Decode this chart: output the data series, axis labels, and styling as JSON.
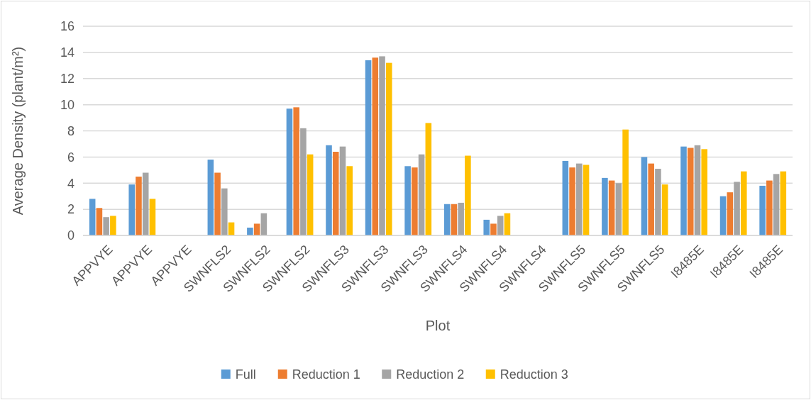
{
  "chart_data": {
    "type": "bar",
    "xlabel": "Plot",
    "ylabel": "Average Density (plant/m²)",
    "categories": [
      "APPVYE",
      "APPVYE",
      "APPVYE",
      "SWNFLS2",
      "SWNFLS2",
      "SWNFLS2",
      "SWNFLS3",
      "SWNFLS3",
      "SWNFLS3",
      "SWNFLS4",
      "SWNFLS4",
      "SWNFLS4",
      "SWNFLS5",
      "SWNFLS5",
      "SWNFLS5",
      "I8485E",
      "I8485E",
      "I8485E"
    ],
    "series": [
      {
        "name": "Full",
        "color": "#5b9bd5",
        "values": [
          2.8,
          3.9,
          0,
          5.8,
          0.6,
          9.7,
          6.9,
          13.4,
          5.3,
          2.4,
          1.2,
          0,
          5.7,
          4.4,
          6.0,
          6.8,
          3.0,
          3.8
        ]
      },
      {
        "name": "Reduction 1",
        "color": "#ed7d31",
        "values": [
          2.1,
          4.5,
          0,
          4.8,
          0.9,
          9.8,
          6.4,
          13.6,
          5.2,
          2.4,
          0.9,
          0,
          5.2,
          4.2,
          5.5,
          6.7,
          3.3,
          4.2
        ]
      },
      {
        "name": "Reduction 2",
        "color": "#a5a5a5",
        "values": [
          1.4,
          4.8,
          0,
          3.6,
          1.7,
          8.2,
          6.8,
          13.7,
          6.2,
          2.5,
          1.5,
          0,
          5.5,
          4.0,
          5.1,
          6.9,
          4.1,
          4.7
        ]
      },
      {
        "name": "Reduction 3",
        "color": "#ffc000",
        "values": [
          1.5,
          2.8,
          0,
          1.0,
          0,
          6.2,
          5.3,
          13.2,
          8.6,
          6.1,
          1.7,
          0,
          5.4,
          8.1,
          3.9,
          6.6,
          4.9,
          4.9
        ]
      }
    ],
    "ylim": [
      0,
      16
    ],
    "yticks": [
      0,
      2,
      4,
      6,
      8,
      10,
      12,
      14,
      16
    ],
    "grid": "y",
    "legend": "bottom"
  }
}
